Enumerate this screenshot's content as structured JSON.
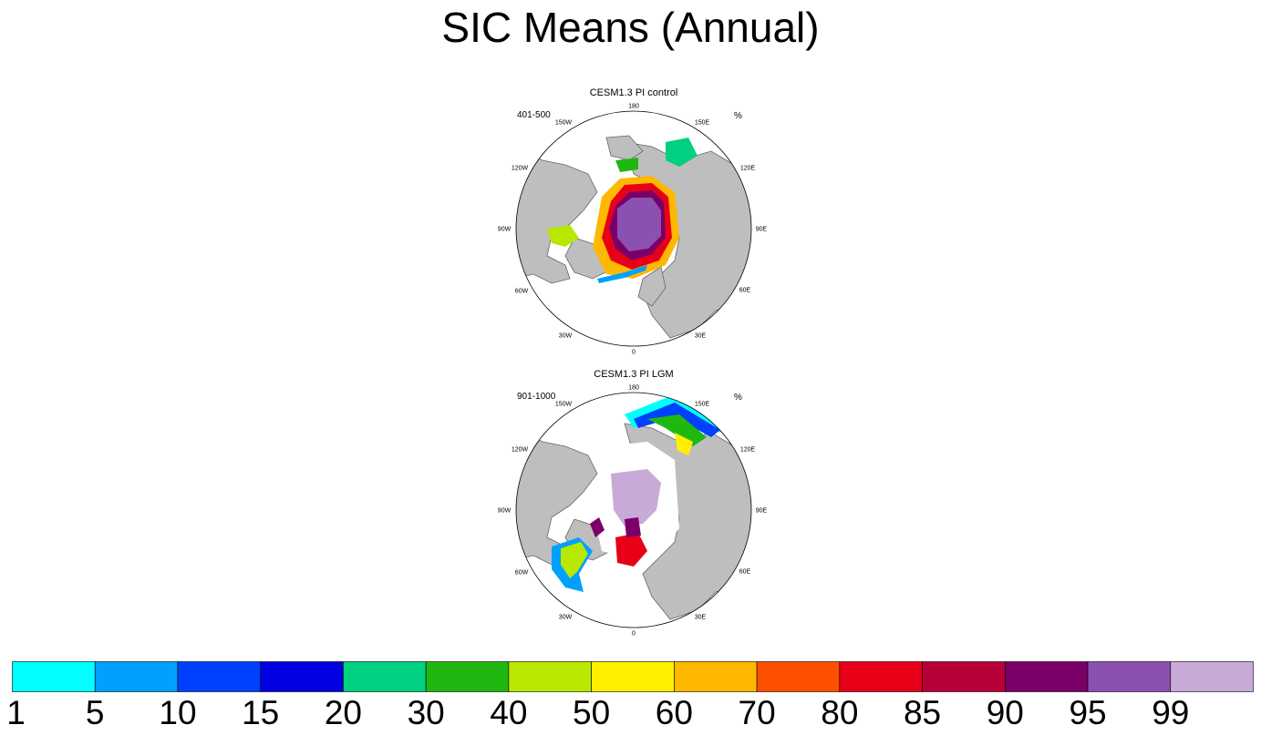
{
  "title": "SIC Means (Annual)",
  "panels": [
    {
      "title": "CESM1.3 PI control",
      "left_label": "401-500",
      "right_label": "%",
      "lon_labels": [
        "180",
        "150E",
        "120E",
        "90E",
        "60E",
        "30E",
        "0",
        "30W",
        "60W",
        "90W",
        "120W",
        "150W"
      ]
    },
    {
      "title": "CESM1.3 PI LGM",
      "left_label": "901-1000",
      "right_label": "%",
      "lon_labels": [
        "180",
        "150E",
        "120E",
        "90E",
        "60E",
        "30E",
        "0",
        "30W",
        "60W",
        "90W",
        "120W",
        "150W"
      ]
    }
  ],
  "chart_data": {
    "type": "heatmap",
    "title": "SIC Means (Annual)",
    "colorbar": {
      "levels": [
        "1",
        "5",
        "10",
        "15",
        "20",
        "30",
        "40",
        "50",
        "60",
        "70",
        "80",
        "85",
        "90",
        "95",
        "99"
      ],
      "colors": [
        "#00ffff",
        "#00a0ff",
        "#0040ff",
        "#0000e0",
        "#00d080",
        "#20b810",
        "#b8e800",
        "#fff000",
        "#ffb800",
        "#ff5000",
        "#e80018",
        "#b80038",
        "#7a0068",
        "#8c50b0",
        "#c8aad8"
      ]
    },
    "land_color": "#bebebe",
    "ocean_color": "#ffffff"
  }
}
